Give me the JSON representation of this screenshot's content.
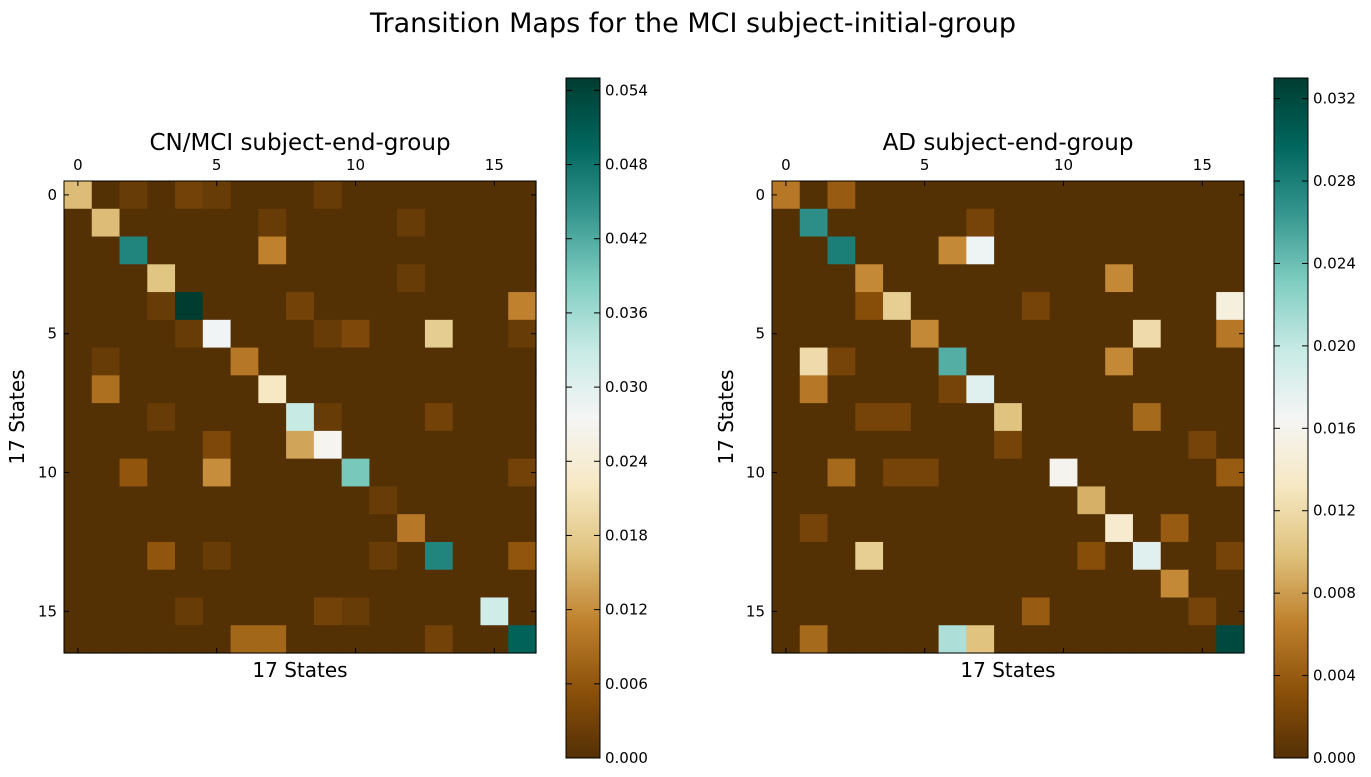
{
  "figure": {
    "title": "Transition Maps for the MCI subject-initial-group"
  },
  "palette": [
    "#543005",
    "#8c510a",
    "#bf812d",
    "#dfc27d",
    "#f6e8c3",
    "#f5f5f5",
    "#c7eae5",
    "#80cdc1",
    "#35978f",
    "#01665e",
    "#003c30"
  ],
  "chart_data": [
    {
      "type": "heatmap",
      "title": "CN/MCI subject-end-group",
      "xlabel": "17 States",
      "ylabel": "17 States",
      "x_ticks": [
        "0",
        "5",
        "10",
        "15"
      ],
      "y_ticks": [
        "0",
        "5",
        "10",
        "15"
      ],
      "colorbar": {
        "range": [
          0,
          0.055
        ],
        "ticks": [
          "0.000",
          "0.006",
          "0.012",
          "0.018",
          "0.024",
          "0.030",
          "0.036",
          "0.042",
          "0.048",
          "0.054"
        ]
      },
      "matrix": [
        [
          0.016,
          0.0,
          0.002,
          0.0,
          0.003,
          0.002,
          0.0,
          0.0,
          0.0,
          0.002,
          0.0,
          0.0,
          0.0,
          0.0,
          0.0,
          0.0,
          0.0
        ],
        [
          0.0,
          0.016,
          0.0,
          0.0,
          0.0,
          0.0,
          0.0,
          0.002,
          0.0,
          0.0,
          0.0,
          0.0,
          0.002,
          0.0,
          0.0,
          0.0,
          0.0
        ],
        [
          0.0,
          0.0,
          0.046,
          0.0,
          0.0,
          0.0,
          0.0,
          0.011,
          0.0,
          0.0,
          0.0,
          0.0,
          0.0,
          0.0,
          0.0,
          0.0,
          0.0
        ],
        [
          0.0,
          0.0,
          0.0,
          0.017,
          0.0,
          0.0,
          0.0,
          0.0,
          0.0,
          0.0,
          0.0,
          0.0,
          0.002,
          0.0,
          0.0,
          0.0,
          0.0
        ],
        [
          0.0,
          0.0,
          0.0,
          0.002,
          0.055,
          0.0,
          0.0,
          0.0,
          0.003,
          0.0,
          0.0,
          0.0,
          0.0,
          0.0,
          0.0,
          0.0,
          0.011
        ],
        [
          0.0,
          0.0,
          0.0,
          0.0,
          0.002,
          0.028,
          0.0,
          0.0,
          0.0,
          0.002,
          0.004,
          0.0,
          0.0,
          0.018,
          0.0,
          0.0,
          0.002
        ],
        [
          0.0,
          0.002,
          0.0,
          0.0,
          0.0,
          0.0,
          0.01,
          0.0,
          0.0,
          0.0,
          0.0,
          0.0,
          0.0,
          0.0,
          0.0,
          0.0,
          0.0
        ],
        [
          0.0,
          0.009,
          0.0,
          0.0,
          0.0,
          0.0,
          0.0,
          0.022,
          0.0,
          0.0,
          0.0,
          0.0,
          0.0,
          0.0,
          0.0,
          0.0,
          0.0
        ],
        [
          0.0,
          0.0,
          0.0,
          0.002,
          0.0,
          0.0,
          0.0,
          0.0,
          0.033,
          0.002,
          0.0,
          0.0,
          0.0,
          0.003,
          0.0,
          0.0,
          0.0
        ],
        [
          0.0,
          0.0,
          0.0,
          0.0,
          0.0,
          0.004,
          0.0,
          0.0,
          0.014,
          0.027,
          0.0,
          0.0,
          0.0,
          0.0,
          0.0,
          0.0,
          0.0
        ],
        [
          0.0,
          0.0,
          0.006,
          0.0,
          0.0,
          0.012,
          0.0,
          0.0,
          0.0,
          0.0,
          0.039,
          0.0,
          0.0,
          0.0,
          0.0,
          0.0,
          0.003
        ],
        [
          0.0,
          0.0,
          0.0,
          0.0,
          0.0,
          0.0,
          0.0,
          0.0,
          0.0,
          0.0,
          0.0,
          0.002,
          0.0,
          0.0,
          0.0,
          0.0,
          0.0
        ],
        [
          0.0,
          0.0,
          0.0,
          0.0,
          0.0,
          0.0,
          0.0,
          0.0,
          0.0,
          0.0,
          0.0,
          0.0,
          0.01,
          0.0,
          0.0,
          0.0,
          0.0
        ],
        [
          0.0,
          0.0,
          0.0,
          0.006,
          0.0,
          0.002,
          0.0,
          0.0,
          0.0,
          0.0,
          0.0,
          0.002,
          0.0,
          0.046,
          0.0,
          0.0,
          0.006
        ],
        [
          0.0,
          0.0,
          0.0,
          0.0,
          0.0,
          0.0,
          0.0,
          0.0,
          0.0,
          0.0,
          0.0,
          0.0,
          0.0,
          0.0,
          0.0,
          0.0,
          0.0
        ],
        [
          0.0,
          0.0,
          0.0,
          0.0,
          0.002,
          0.0,
          0.0,
          0.0,
          0.0,
          0.003,
          0.002,
          0.0,
          0.0,
          0.0,
          0.0,
          0.032,
          0.0
        ],
        [
          0.0,
          0.0,
          0.0,
          0.0,
          0.0,
          0.0,
          0.008,
          0.008,
          0.0,
          0.0,
          0.0,
          0.0,
          0.0,
          0.003,
          0.0,
          0.0,
          0.05
        ]
      ]
    },
    {
      "type": "heatmap",
      "title": "AD subject-end-group",
      "xlabel": "17 States",
      "ylabel": "17 States",
      "x_ticks": [
        "0",
        "5",
        "10",
        "15"
      ],
      "y_ticks": [
        "0",
        "5",
        "10",
        "15"
      ],
      "colorbar": {
        "range": [
          0,
          0.033
        ],
        "ticks": [
          "0.000",
          "0.004",
          "0.008",
          "0.012",
          "0.016",
          "0.020",
          "0.024",
          "0.028",
          "0.032"
        ]
      },
      "matrix": [
        [
          0.006,
          0.0,
          0.004,
          0.0,
          0.0,
          0.0,
          0.0,
          0.0,
          0.0,
          0.0,
          0.0,
          0.0,
          0.0,
          0.0,
          0.0,
          0.0,
          0.0
        ],
        [
          0.0,
          0.027,
          0.0,
          0.0,
          0.0,
          0.0,
          0.0,
          0.002,
          0.0,
          0.0,
          0.0,
          0.0,
          0.0,
          0.0,
          0.0,
          0.0,
          0.0
        ],
        [
          0.0,
          0.0,
          0.028,
          0.0,
          0.0,
          0.0,
          0.007,
          0.017,
          0.0,
          0.0,
          0.0,
          0.0,
          0.0,
          0.0,
          0.0,
          0.0,
          0.0
        ],
        [
          0.0,
          0.0,
          0.0,
          0.007,
          0.0,
          0.0,
          0.0,
          0.0,
          0.0,
          0.0,
          0.0,
          0.0,
          0.007,
          0.0,
          0.0,
          0.0,
          0.0
        ],
        [
          0.0,
          0.0,
          0.0,
          0.003,
          0.011,
          0.0,
          0.0,
          0.0,
          0.0,
          0.002,
          0.0,
          0.0,
          0.0,
          0.0,
          0.0,
          0.0,
          0.015
        ],
        [
          0.0,
          0.0,
          0.0,
          0.0,
          0.0,
          0.007,
          0.0,
          0.0,
          0.0,
          0.0,
          0.0,
          0.0,
          0.0,
          0.012,
          0.0,
          0.0,
          0.006
        ],
        [
          0.0,
          0.012,
          0.002,
          0.0,
          0.0,
          0.0,
          0.025,
          0.0,
          0.0,
          0.0,
          0.0,
          0.0,
          0.007,
          0.0,
          0.0,
          0.0,
          0.0
        ],
        [
          0.0,
          0.006,
          0.0,
          0.0,
          0.0,
          0.0,
          0.002,
          0.018,
          0.0,
          0.0,
          0.0,
          0.0,
          0.0,
          0.0,
          0.0,
          0.0,
          0.0
        ],
        [
          0.0,
          0.0,
          0.0,
          0.002,
          0.002,
          0.0,
          0.0,
          0.0,
          0.01,
          0.0,
          0.0,
          0.0,
          0.0,
          0.005,
          0.0,
          0.0,
          0.0
        ],
        [
          0.0,
          0.0,
          0.0,
          0.0,
          0.0,
          0.0,
          0.0,
          0.0,
          0.002,
          0.0,
          0.0,
          0.0,
          0.0,
          0.0,
          0.0,
          0.002,
          0.0
        ],
        [
          0.0,
          0.0,
          0.005,
          0.0,
          0.002,
          0.002,
          0.0,
          0.0,
          0.0,
          0.0,
          0.016,
          0.0,
          0.0,
          0.0,
          0.0,
          0.0,
          0.004
        ],
        [
          0.0,
          0.0,
          0.0,
          0.0,
          0.0,
          0.0,
          0.0,
          0.0,
          0.0,
          0.0,
          0.0,
          0.009,
          0.0,
          0.0,
          0.0,
          0.0,
          0.0
        ],
        [
          0.0,
          0.002,
          0.0,
          0.0,
          0.0,
          0.0,
          0.0,
          0.0,
          0.0,
          0.0,
          0.0,
          0.0,
          0.014,
          0.0,
          0.004,
          0.0,
          0.0
        ],
        [
          0.0,
          0.0,
          0.0,
          0.011,
          0.0,
          0.0,
          0.0,
          0.0,
          0.0,
          0.0,
          0.0,
          0.003,
          0.0,
          0.018,
          0.0,
          0.0,
          0.002
        ],
        [
          0.0,
          0.0,
          0.0,
          0.0,
          0.0,
          0.0,
          0.0,
          0.0,
          0.0,
          0.0,
          0.0,
          0.0,
          0.0,
          0.0,
          0.007,
          0.0,
          0.0
        ],
        [
          0.0,
          0.0,
          0.0,
          0.0,
          0.0,
          0.0,
          0.0,
          0.0,
          0.0,
          0.004,
          0.0,
          0.0,
          0.0,
          0.0,
          0.0,
          0.002,
          0.0
        ],
        [
          0.0,
          0.005,
          0.0,
          0.0,
          0.0,
          0.0,
          0.021,
          0.01,
          0.0,
          0.0,
          0.0,
          0.0,
          0.0,
          0.0,
          0.0,
          0.0,
          0.032
        ]
      ]
    }
  ]
}
